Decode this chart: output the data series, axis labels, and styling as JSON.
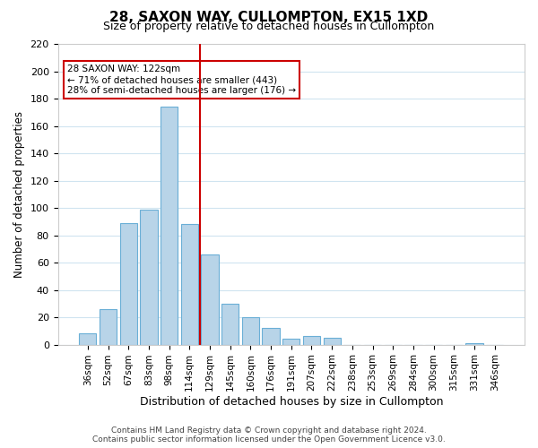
{
  "title": "28, SAXON WAY, CULLOMPTON, EX15 1XD",
  "subtitle": "Size of property relative to detached houses in Cullompton",
  "xlabel": "Distribution of detached houses by size in Cullompton",
  "ylabel": "Number of detached properties",
  "bar_labels": [
    "36sqm",
    "52sqm",
    "67sqm",
    "83sqm",
    "98sqm",
    "114sqm",
    "129sqm",
    "145sqm",
    "160sqm",
    "176sqm",
    "191sqm",
    "207sqm",
    "222sqm",
    "238sqm",
    "253sqm",
    "269sqm",
    "284sqm",
    "300sqm",
    "315sqm",
    "331sqm",
    "346sqm"
  ],
  "bar_values": [
    8,
    26,
    89,
    99,
    174,
    88,
    66,
    30,
    20,
    12,
    4,
    6,
    5,
    0,
    0,
    0,
    0,
    0,
    0,
    1,
    0
  ],
  "bar_color": "#b8d4e8",
  "bar_edge_color": "#6aafd6",
  "vline_x": 5.5,
  "vline_color": "#cc0000",
  "annotation_text": "28 SAXON WAY: 122sqm\n← 71% of detached houses are smaller (443)\n28% of semi-detached houses are larger (176) →",
  "annotation_box_color": "#ffffff",
  "annotation_box_edge": "#cc0000",
  "ylim": [
    0,
    220
  ],
  "yticks": [
    0,
    20,
    40,
    60,
    80,
    100,
    120,
    140,
    160,
    180,
    200,
    220
  ],
  "footer_text": "Contains HM Land Registry data © Crown copyright and database right 2024.\nContains public sector information licensed under the Open Government Licence v3.0.",
  "background_color": "#ffffff",
  "grid_color": "#d0e4f0"
}
